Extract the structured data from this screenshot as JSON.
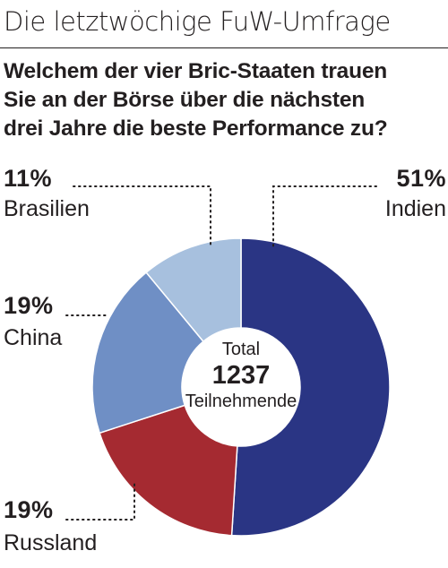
{
  "header": {
    "title": "Die letztwöchige FuW-Umfrage"
  },
  "question": {
    "lines": [
      "Welchem der vier Bric-Staaten trauen",
      "Sie an der Börse über die nächsten",
      "drei Jahre die beste Performance zu?"
    ]
  },
  "center": {
    "line1": "Total",
    "total": "1237",
    "line3": "Teilnehmende"
  },
  "chart_data": {
    "type": "pie",
    "donut": true,
    "total_participants": 1237,
    "slices": [
      {
        "label": "Indien",
        "value": 51,
        "display": "51%",
        "color": "#2a3584"
      },
      {
        "label": "Russland",
        "value": 19,
        "display": "19%",
        "color": "#a52a31"
      },
      {
        "label": "China",
        "value": 19,
        "display": "19%",
        "color": "#6f8fc5"
      },
      {
        "label": "Brasilien",
        "value": 11,
        "display": "11%",
        "color": "#a7c0de"
      }
    ]
  },
  "colors": {
    "text": "#231f20",
    "separator": "#ffffff",
    "leader": "#231f20"
  }
}
